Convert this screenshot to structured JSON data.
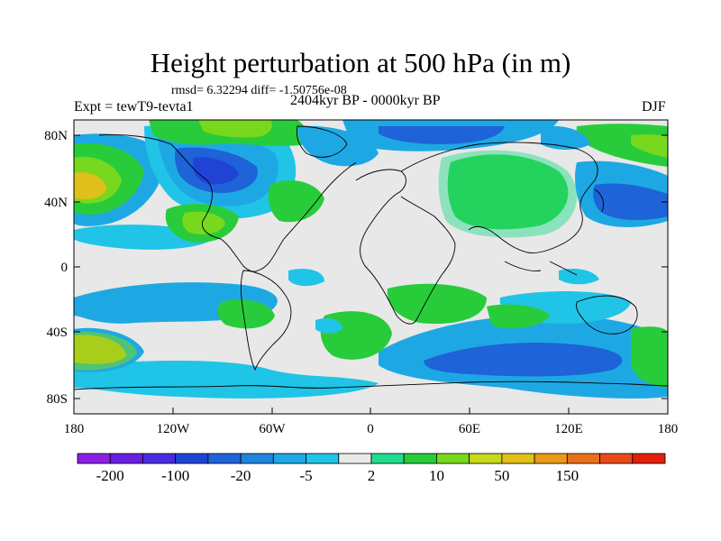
{
  "title": "Height perturbation at 500 hPa (in m)",
  "stats": "rmsd= 6.32294 diff= -1.50756e-08",
  "experiment": "Expt = tewT9-tevta1",
  "period": "2404kyr BP - 0000kyr BP",
  "season": "DJF",
  "lat_labels": [
    "80N",
    "40N",
    "0",
    "40S",
    "80S"
  ],
  "lon_labels": [
    "180",
    "120W",
    "60W",
    "0",
    "60E",
    "120E",
    "180"
  ],
  "colorbar": {
    "labels": [
      "-200",
      "-100",
      "-20",
      "-5",
      "2",
      "10",
      "50",
      "150"
    ],
    "colors": [
      "#8c1fe6",
      "#6a1ee0",
      "#4a2be0",
      "#2043d6",
      "#1e63d8",
      "#1e86dc",
      "#1ea8e3",
      "#20c4e6",
      "#e8e8e8",
      "#20dc8c",
      "#28cc3a",
      "#78d81e",
      "#c8d81a",
      "#e0c01a",
      "#e89a1a",
      "#e8701a",
      "#e84a1a",
      "#e0200a"
    ]
  },
  "field_colors": {
    "neutral": "#e8e8e8",
    "light_blue": "#20c4e6",
    "mid_blue": "#1ea8e3",
    "blue": "#1e63d8",
    "dark_blue": "#2043d6",
    "green": "#28cc3a",
    "light_green": "#20dc8c",
    "yellow_green": "#78d81e",
    "orange": "#e0c01a",
    "coast": "#000000"
  }
}
